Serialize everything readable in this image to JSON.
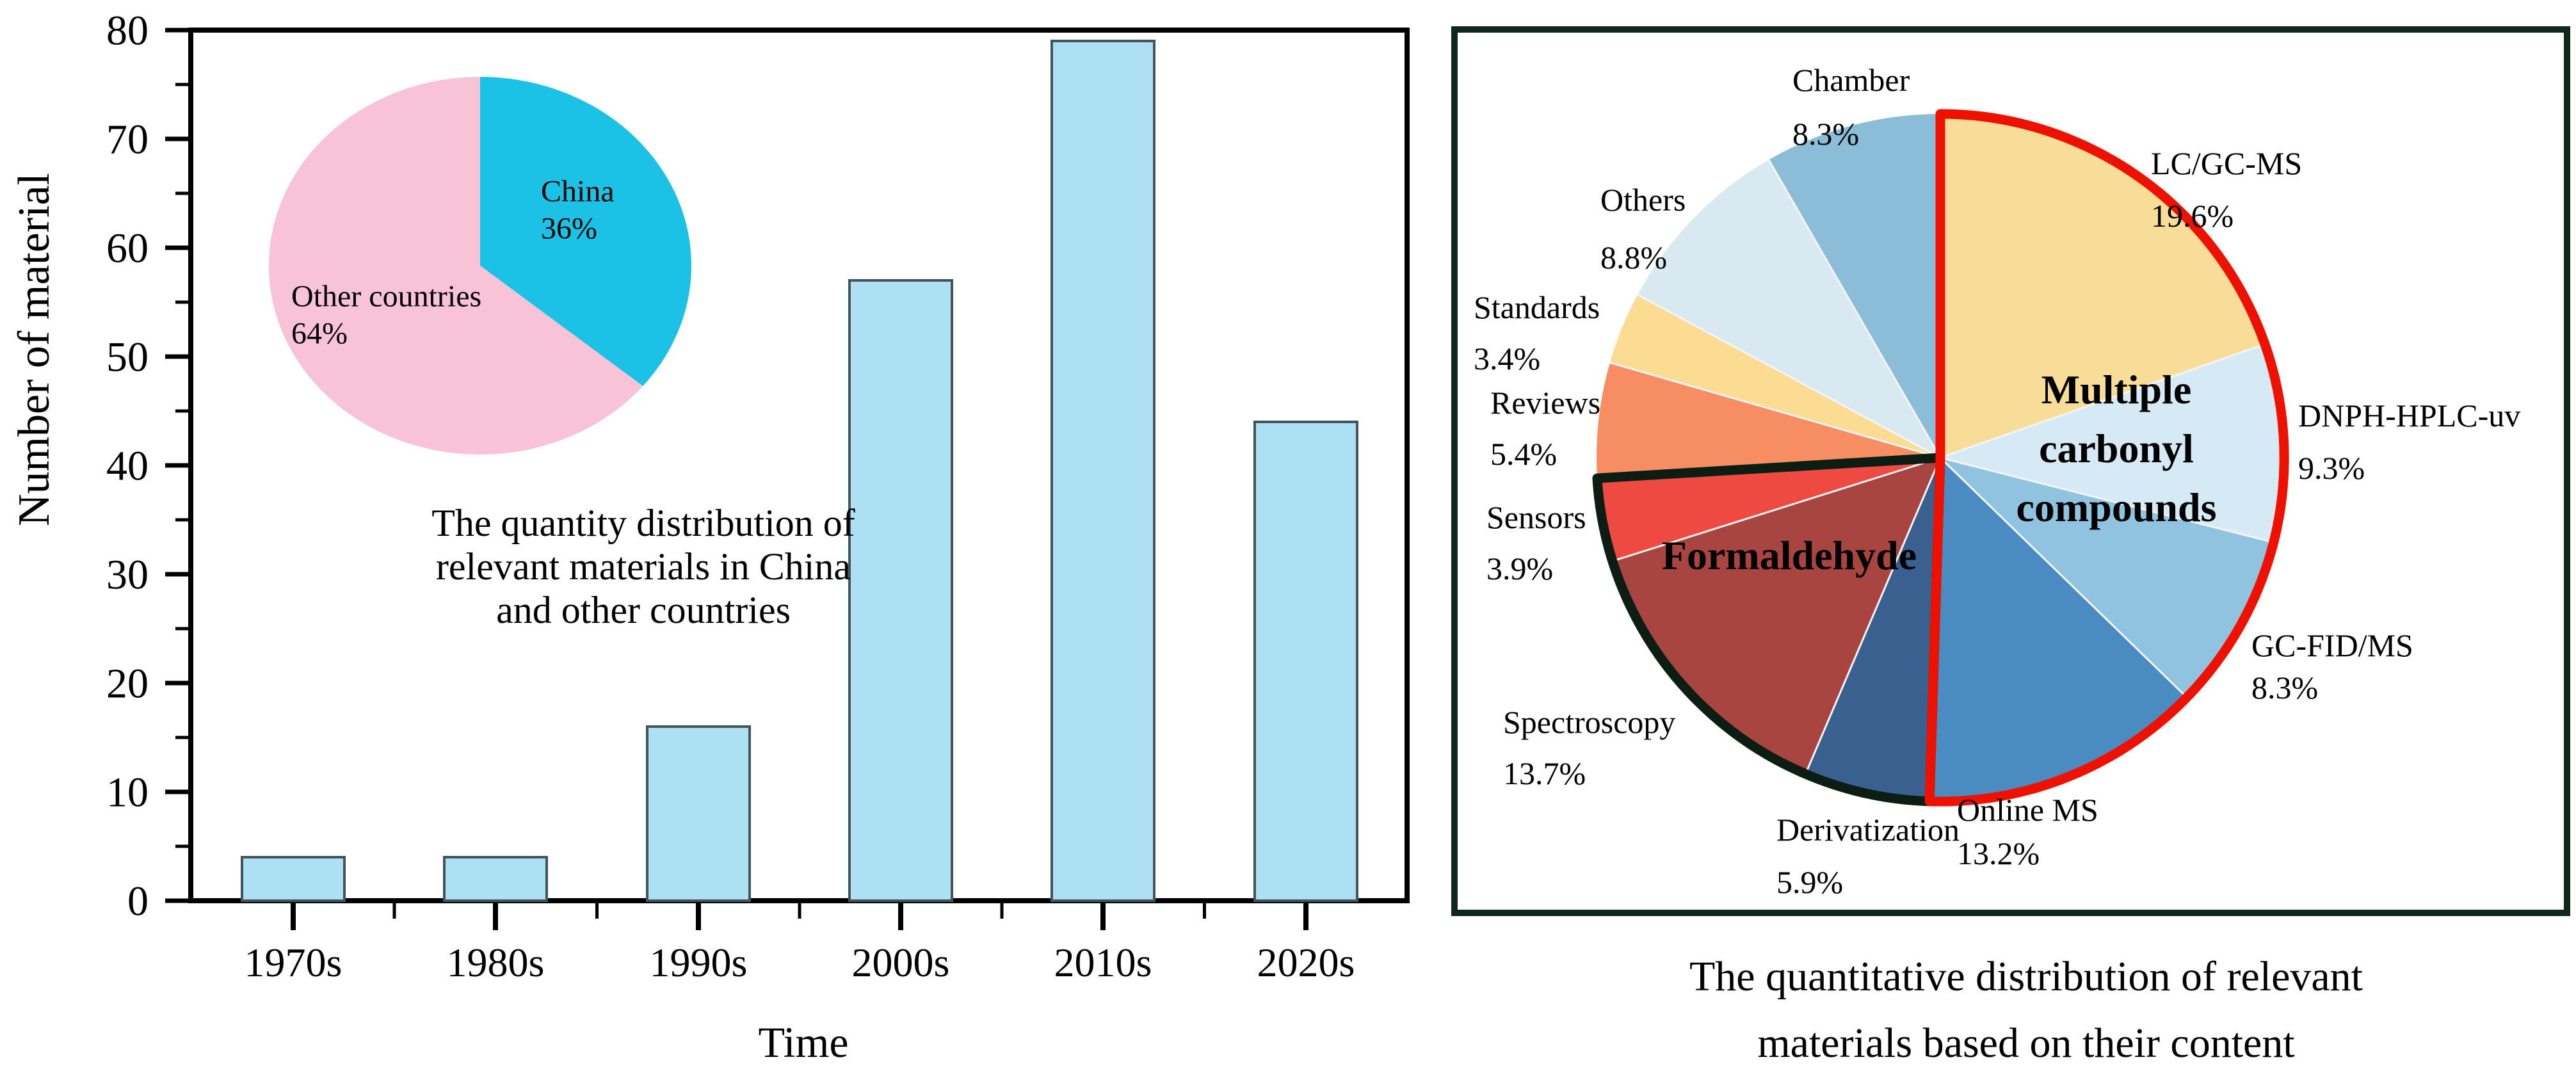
{
  "figure_title": "Publication statistics figure",
  "chart_data": [
    {
      "type": "bar",
      "panel": "left",
      "title": "",
      "xlabel": "Time",
      "ylabel": "Number of material",
      "categories": [
        "1970s",
        "1980s",
        "1990s",
        "2000s",
        "2010s",
        "2020s"
      ],
      "values": [
        4,
        4,
        16,
        57,
        79,
        44
      ],
      "ylim": [
        0,
        80
      ],
      "ytick_step": 10,
      "yminor_step": 5,
      "grid": false,
      "bar_color": "#ace0f2",
      "bar_border": "#44535c",
      "axis_color": "#000000"
    },
    {
      "type": "pie",
      "panel": "left-inset",
      "slices": [
        {
          "label": "China",
          "pct": 36,
          "color": "#1bc2e5"
        },
        {
          "label": "Other countries",
          "pct": 64,
          "color": "#f8c3d6"
        }
      ],
      "caption_lines": [
        "The quantity distribution of",
        "relevant materials in China",
        "and other countries"
      ]
    },
    {
      "type": "pie",
      "panel": "right",
      "slices": [
        {
          "label": "LC/GC-MS",
          "pct": 19.6,
          "color": "#f8dd98"
        },
        {
          "label": "DNPH-HPLC-uv",
          "pct": 9.3,
          "color": "#d5eaf4"
        },
        {
          "label": "GC-FID/MS",
          "pct": 8.3,
          "color": "#8fc3df"
        },
        {
          "label": "Online MS",
          "pct": 13.2,
          "color": "#4a8cc2"
        },
        {
          "label": "Derivatization",
          "pct": 5.9,
          "color": "#3a608f"
        },
        {
          "label": "Spectroscopy",
          "pct": 13.7,
          "color": "#a94540"
        },
        {
          "label": "Sensors",
          "pct": 3.9,
          "color": "#ef4a41"
        },
        {
          "label": "Reviews",
          "pct": 5.4,
          "color": "#f68d63"
        },
        {
          "label": "Standards",
          "pct": 3.4,
          "color": "#fbdc92"
        },
        {
          "label": "Others",
          "pct": 8.8,
          "color": "#d8e9f2"
        },
        {
          "label": "Chamber",
          "pct": 8.3,
          "color": "#8bbdd9"
        }
      ],
      "groups": [
        {
          "label": "Multiple carbonyl compounds",
          "label_lines": [
            "Multiple",
            "carbonyl",
            "compounds"
          ],
          "from": "LC/GC-MS",
          "to": "Online MS",
          "outline_color": "#ee1100",
          "text_color": "#111111"
        },
        {
          "label": "Formaldehyde",
          "label_lines": [
            "Formaldehyde"
          ],
          "from": "Derivatization",
          "to": "Sensors",
          "outline_color": "#0c1d14",
          "text_color": "#ffffff"
        }
      ],
      "border_color": "#10271e",
      "caption_lines": [
        "The quantitative distribution of relevant",
        "materials based on their content"
      ]
    }
  ]
}
